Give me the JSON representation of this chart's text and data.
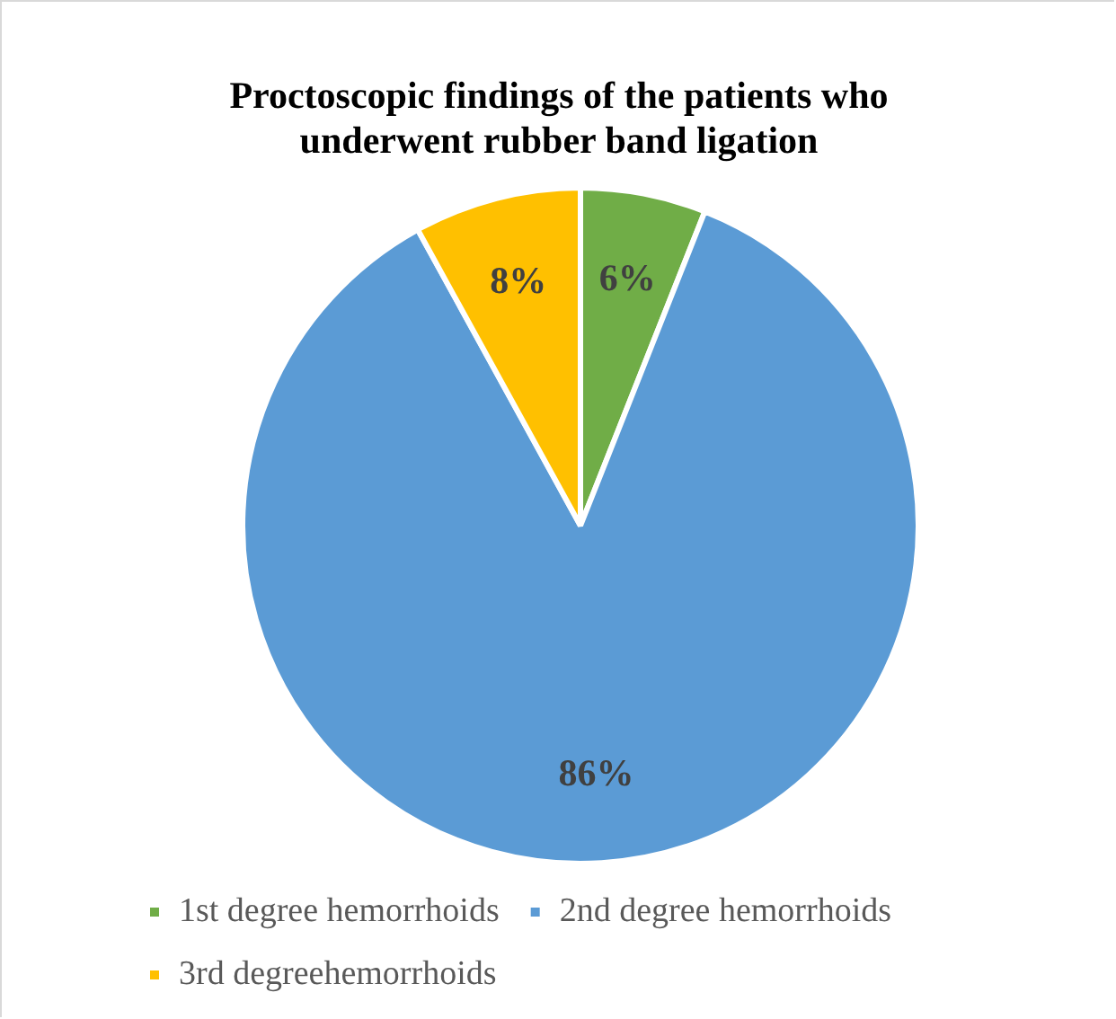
{
  "chart_data": {
    "type": "pie",
    "title": "Proctoscopic findings of the patients who underwent rubber band ligation",
    "categories": [
      "1st degree hemorrhoids",
      "2nd degree hemorrhoids",
      "3rd degreehemorrhoids"
    ],
    "values": [
      6,
      86,
      8
    ],
    "colors": [
      "#70ad47",
      "#5b9bd5",
      "#ffc000"
    ],
    "value_labels": [
      "6%",
      "86%",
      "8%"
    ],
    "legend": "bottom"
  }
}
